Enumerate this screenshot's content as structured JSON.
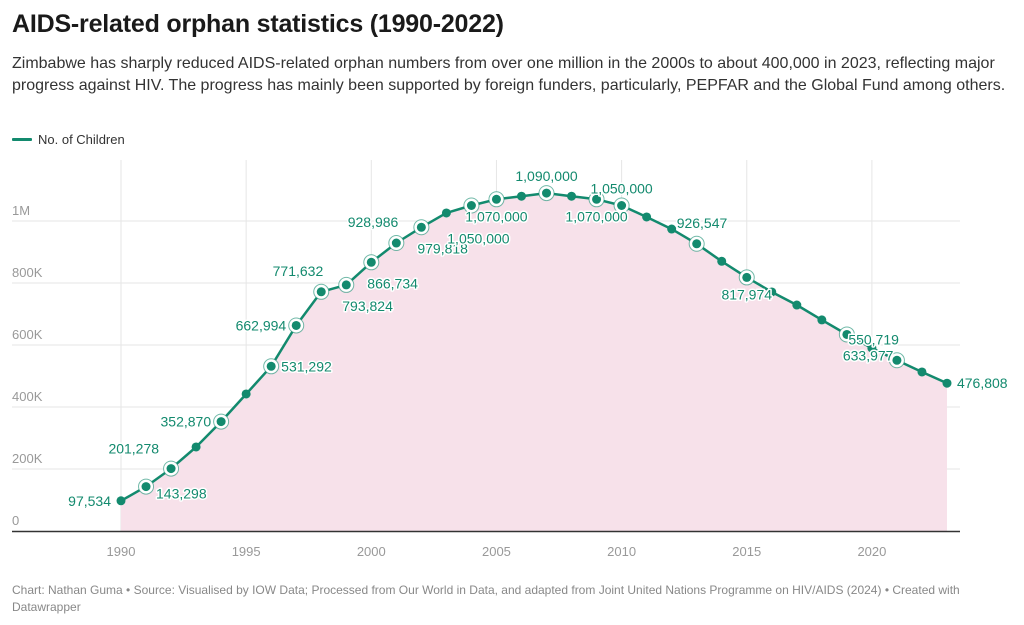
{
  "header": {
    "title": "AIDS-related orphan statistics (1990-2022)",
    "subtitle": "Zimbabwe has sharply reduced AIDS-related orphan numbers from over one million in the 2000s to about 400,000 in 2023, reflecting major progress against HIV. The progress has mainly been supported by foreign funders, particularly, PEPFAR and the Global Fund among others."
  },
  "legend": {
    "label": "No. of Children",
    "color": "#138a6e"
  },
  "footer": {
    "text": "Chart: Nathan Guma  • Source: Visualised by IOW Data; Processed from Our World in Data, and adapted from Joint United Nations Programme on HIV/AIDS (2024) • Created with Datawrapper"
  },
  "colors": {
    "line": "#138a6e",
    "area": "#f7e1ea",
    "grid": "#e6e6e6",
    "axis": "#333333",
    "tick_text": "#999999"
  },
  "chart_data": {
    "type": "line",
    "title": "AIDS-related orphan statistics (1990-2022)",
    "xlabel": "",
    "ylabel": "",
    "xlim": [
      1983.5,
      2023.5
    ],
    "ylim": [
      0,
      1100000
    ],
    "grid": true,
    "legend_position": "top-left",
    "x_ticks": [
      1990,
      1995,
      2000,
      2005,
      2010,
      2015,
      2020
    ],
    "y_ticks": [
      {
        "value": 0,
        "label": "0"
      },
      {
        "value": 200000,
        "label": "200K"
      },
      {
        "value": 400000,
        "label": "400K"
      },
      {
        "value": 600000,
        "label": "600K"
      },
      {
        "value": 800000,
        "label": "800K"
      },
      {
        "value": 1000000,
        "label": "1M"
      }
    ],
    "series": [
      {
        "name": "No. of Children",
        "x": [
          1990,
          1991,
          1992,
          1993,
          1994,
          1995,
          1996,
          1997,
          1998,
          1999,
          2000,
          2001,
          2002,
          2003,
          2004,
          2005,
          2006,
          2007,
          2008,
          2009,
          2010,
          2011,
          2012,
          2013,
          2014,
          2015,
          2016,
          2017,
          2018,
          2019,
          2020,
          2021,
          2022,
          2023
        ],
        "values": [
          97534,
          143298,
          201278,
          271000,
          352870,
          442000,
          531292,
          662994,
          771632,
          793824,
          866734,
          928986,
          979818,
          1026000,
          1050000,
          1070000,
          1080000,
          1090000,
          1080000,
          1070000,
          1050000,
          1013000,
          974000,
          926547,
          870000,
          817974,
          771000,
          729000,
          681000,
          633977,
          590000,
          550719,
          513000,
          476808
        ]
      }
    ],
    "annotations": [
      {
        "year": 1990,
        "label": "97,534",
        "pos": "left",
        "ring": false
      },
      {
        "year": 1991,
        "label": "143,298",
        "pos": "right-below",
        "ring": true
      },
      {
        "year": 1992,
        "label": "201,278",
        "pos": "left-above",
        "ring": true
      },
      {
        "year": 1994,
        "label": "352,870",
        "pos": "left",
        "ring": true
      },
      {
        "year": 1996,
        "label": "531,292",
        "pos": "right",
        "ring": true
      },
      {
        "year": 1997,
        "label": "662,994",
        "pos": "left",
        "ring": true
      },
      {
        "year": 1998,
        "label": "771,632",
        "pos": "above-left",
        "ring": true
      },
      {
        "year": 1999,
        "label": "793,824",
        "pos": "below-right",
        "ring": true
      },
      {
        "year": 2000,
        "label": "866,734",
        "pos": "below-right",
        "ring": true
      },
      {
        "year": 2001,
        "label": "928,986",
        "pos": "above-left",
        "ring": true
      },
      {
        "year": 2002,
        "label": "979,818",
        "pos": "below-right",
        "ring": true
      },
      {
        "year": 2004,
        "label": "1,050,000",
        "pos": "below-far",
        "ring": true
      },
      {
        "year": 2005,
        "label": "1,070,000",
        "pos": "below",
        "ring": true
      },
      {
        "year": 2007,
        "label": "1,090,000",
        "pos": "above",
        "ring": true
      },
      {
        "year": 2009,
        "label": "1,070,000",
        "pos": "below",
        "ring": true
      },
      {
        "year": 2010,
        "label": "1,050,000",
        "pos": "above",
        "ring": true
      },
      {
        "year": 2013,
        "label": "926,547",
        "pos": "above-right",
        "ring": true
      },
      {
        "year": 2015,
        "label": "817,974",
        "pos": "below",
        "ring": true
      },
      {
        "year": 2019,
        "label": "633,977",
        "pos": "below-right",
        "ring": true
      },
      {
        "year": 2021,
        "label": "550,719",
        "pos": "above-left",
        "ring": true
      },
      {
        "year": 2023,
        "label": "476,808",
        "pos": "right",
        "ring": false
      }
    ]
  }
}
